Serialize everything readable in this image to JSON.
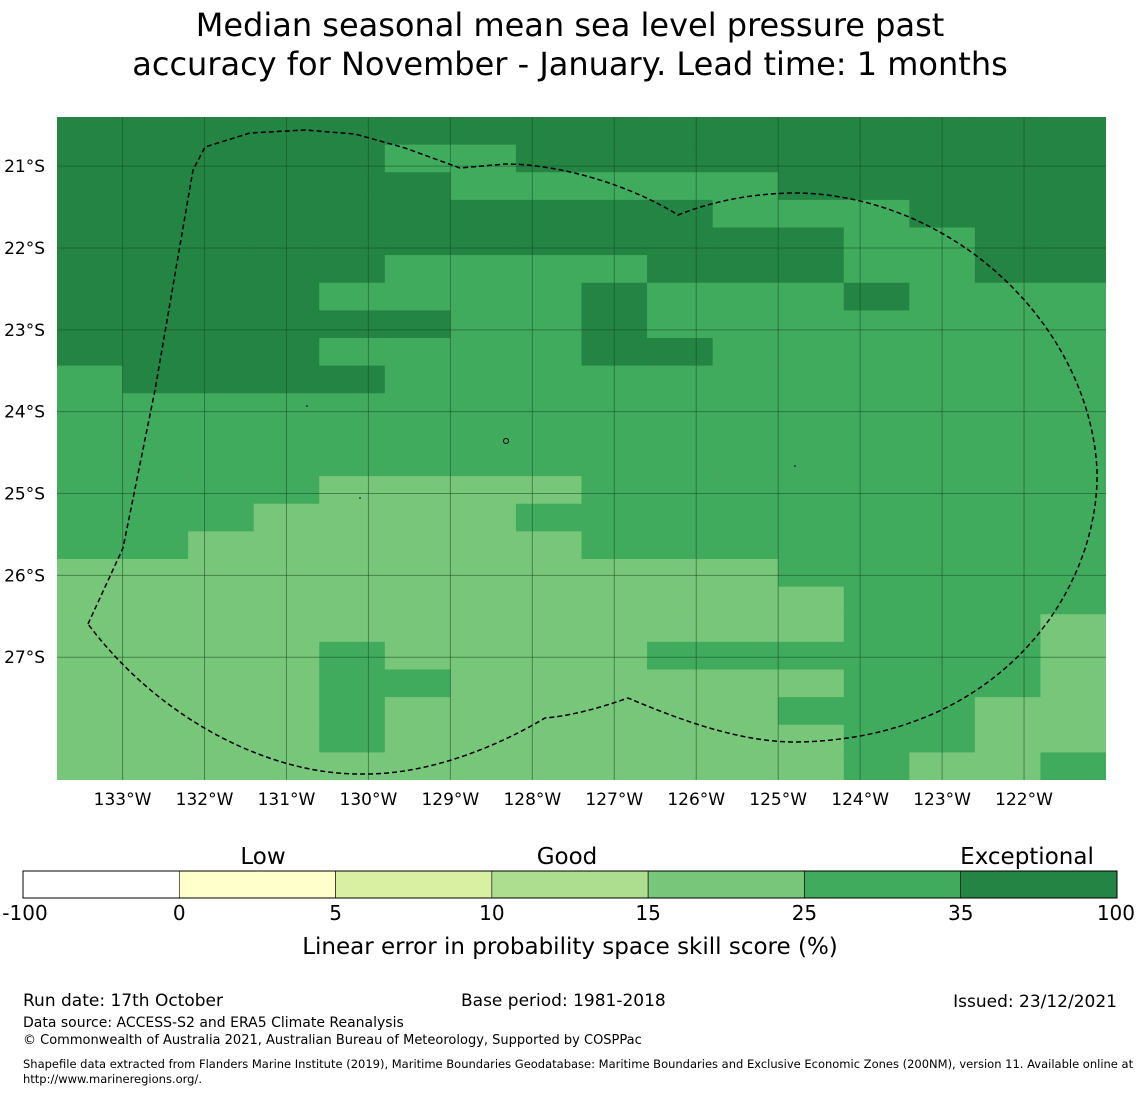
{
  "title_lines": [
    "Median seasonal mean sea level pressure past",
    "accuracy for November - January. Lead time: 1 months"
  ],
  "map": {
    "lat_ticks": [
      "21°S",
      "22°S",
      "23°S",
      "24°S",
      "25°S",
      "26°S",
      "27°S"
    ],
    "lon_ticks": [
      "133°W",
      "132°W",
      "131°W",
      "130°W",
      "129°W",
      "128°W",
      "127°W",
      "126°W",
      "125°W",
      "124°W",
      "123°W",
      "122°W"
    ],
    "lon_start": -133.8,
    "lon_end": -121.0,
    "lat_north": -20.4,
    "lat_south": -28.5,
    "grid_step": 0.833,
    "grid_rows": [
      "3333333333333333",
      "3333322333333333",
      "3333332222233333",
      "3333333333222333",
      "3333333333332233",
      "3333322223332233",
      "3333222232223222",
      "3333332232222222",
      "3333222233222222",
      "2333322222222222",
      "2222222222222222",
      "2222222222222222",
      "2222222222222222",
      "2222111122222222",
      "2221111222222222",
      "2211111122222222",
      "1111111111122222",
      "1111111111112222",
      "1111111111112221",
      "1111211112222221",
      "1111221111112221",
      "1111211111122211",
      "1111211111112211",
      "1111111111112112"
    ],
    "cell_colors": [
      "#a8db8e",
      "#78c679",
      "#41ab5d",
      "#238443"
    ]
  },
  "colorbar": {
    "categories": [
      "Low",
      "Good",
      "Exceptional"
    ],
    "tick_labels": [
      "-100",
      "0",
      "5",
      "10",
      "15",
      "25",
      "35",
      "100"
    ],
    "colors": [
      "#ffffff",
      "#ffffcc",
      "#d9f0a3",
      "#addd8e",
      "#78c679",
      "#41ab5d",
      "#238443"
    ],
    "title": "Linear error in probability space skill score (%)"
  },
  "footer": {
    "run_date": "Run date: 17th October",
    "base_period": "Base period: 1981-2018",
    "issued": "Issued: 23/12/2021",
    "data_source": "Data source: ACCESS-S2 and ERA5 Climate Reanalysis",
    "copyright": "© Commonwealth of Australia 2021, Australian Bureau of Meteorology, Supported by COSPPac",
    "shapefile": "Shapefile data extracted from Flanders Marine Institute (2019), Maritime Boundaries Geodatabase: Maritime Boundaries and Exclusive Economic Zones (200NM), version 11. Available online at http://www.marineregions.org/."
  }
}
